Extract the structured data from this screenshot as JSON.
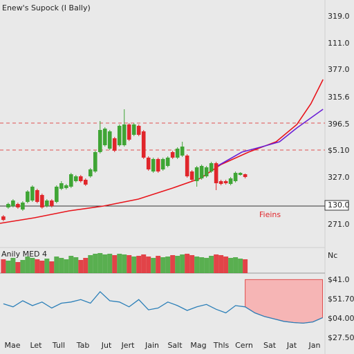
{
  "chart_data": {
    "type": "candlestick",
    "title": "Enew's Supock (I Bally)",
    "up_color": "#3fa535",
    "down_color": "#e0262b",
    "xlim": [
      -0.7,
      66.5
    ],
    "ylim": [
      0,
      330
    ],
    "candles": {
      "open": [
        17,
        30,
        32,
        35,
        27,
        38,
        40,
        55,
        48,
        32,
        40,
        38,
        57,
        58,
        60,
        68,
        75,
        70,
        75,
        82,
        110,
        120,
        115,
        130,
        120,
        120,
        150,
        135,
        148,
        140,
        102,
        82,
        100,
        85,
        90,
        110,
        102,
        105,
        105,
        82,
        68,
        72,
        75,
        82,
        94,
        68,
        68,
        64,
        68,
        77,
        78
      ],
      "high": [
        19,
        37,
        42,
        37,
        39,
        55,
        62,
        57,
        50,
        42,
        42,
        62,
        68,
        64,
        80,
        77,
        77,
        72,
        87,
        112,
        155,
        146,
        142,
        132,
        150,
        172,
        152,
        152,
        150,
        142,
        104,
        102,
        102,
        102,
        104,
        112,
        117,
        125,
        107,
        84,
        90,
        92,
        90,
        96,
        96,
        70,
        70,
        74,
        82,
        81,
        79
      ],
      "low": [
        10,
        28,
        30,
        28,
        25,
        36,
        38,
        36,
        28,
        30,
        30,
        36,
        55,
        56,
        58,
        66,
        66,
        61,
        73,
        80,
        108,
        118,
        113,
        110,
        118,
        118,
        126,
        133,
        133,
        100,
        83,
        80,
        80,
        83,
        88,
        100,
        100,
        103,
        73,
        68,
        60,
        70,
        73,
        80,
        55,
        62,
        63,
        62,
        66,
        76,
        72
      ],
      "close": [
        12,
        35,
        40,
        30,
        37,
        53,
        60,
        38,
        30,
        40,
        32,
        60,
        65,
        62,
        78,
        75,
        68,
        63,
        85,
        110,
        142,
        144,
        140,
        112,
        148,
        150,
        128,
        150,
        135,
        102,
        85,
        100,
        82,
        100,
        102,
        102,
        115,
        118,
        75,
        70,
        88,
        90,
        88,
        94,
        65,
        64,
        65,
        72,
        80,
        80,
        74
      ]
    },
    "series": [
      {
        "color": "#e8141b",
        "x": [
          -0.7,
          6.4,
          13.6,
          20.7,
          27.9,
          35,
          40.7,
          45,
          50.7,
          56.4,
          60.7,
          63.6,
          66.1
        ],
        "values": [
          7,
          15,
          25,
          32,
          42,
          58,
          72,
          92,
          110,
          125,
          150,
          180,
          215
        ]
      },
      {
        "color": "#6a1fd6",
        "x": [
          44.3,
          49.3,
          53.6,
          57.1,
          60.7,
          66.1
        ],
        "values": [
          90,
          110,
          118,
          125,
          145,
          172
        ]
      }
    ],
    "dashed_lines": [
      152,
      113
    ],
    "solid_line": 32,
    "annotation": "Fieins",
    "y_labels": [
      "319.0",
      "111.0",
      "377.0",
      "315.6",
      "396.5",
      "$5.10",
      "327.0",
      "130.0",
      "271.0"
    ],
    "volume": {
      "label": "Anily MED 4",
      "ylim": [
        0,
        30
      ],
      "values": [
        20,
        18,
        22,
        16,
        19,
        24,
        22,
        20,
        18,
        21,
        17,
        24,
        22,
        20,
        25,
        23,
        19,
        22,
        26,
        28,
        29,
        27,
        28,
        26,
        28,
        27,
        26,
        24,
        25,
        27,
        24,
        22,
        25,
        23,
        24,
        26,
        25,
        27,
        28,
        26,
        24,
        23,
        22,
        25,
        27,
        26,
        24,
        22,
        23,
        21,
        20
      ]
    },
    "oscillator": {
      "color": "#2b7fb8",
      "ylim": [
        0,
        80
      ],
      "x": [
        0,
        2,
        4,
        6,
        8,
        10,
        12,
        14,
        16,
        18,
        20,
        22,
        24,
        26,
        28,
        30,
        32,
        34,
        36,
        38,
        40,
        42,
        44,
        46,
        48,
        50,
        52,
        54,
        56,
        58,
        60,
        62,
        64,
        66
      ],
      "values": [
        35,
        30,
        40,
        32,
        38,
        28,
        36,
        38,
        42,
        36,
        55,
        40,
        38,
        30,
        42,
        25,
        28,
        38,
        32,
        24,
        30,
        34,
        26,
        20,
        32,
        30,
        20,
        14,
        10,
        6,
        4,
        3,
        5,
        12
      ],
      "shade_top": 75
    },
    "lower_labels": [
      "Nc",
      "$41.0",
      "$51.70",
      "$04.00",
      "$27.50"
    ],
    "x_labels": [
      "Mae",
      "Let",
      "Tull",
      "Tab",
      "Jut",
      "Jert",
      "Jain",
      "Salt",
      "Mag",
      "Thls",
      "Cern",
      "Sat",
      "Jat",
      "Jan"
    ]
  }
}
